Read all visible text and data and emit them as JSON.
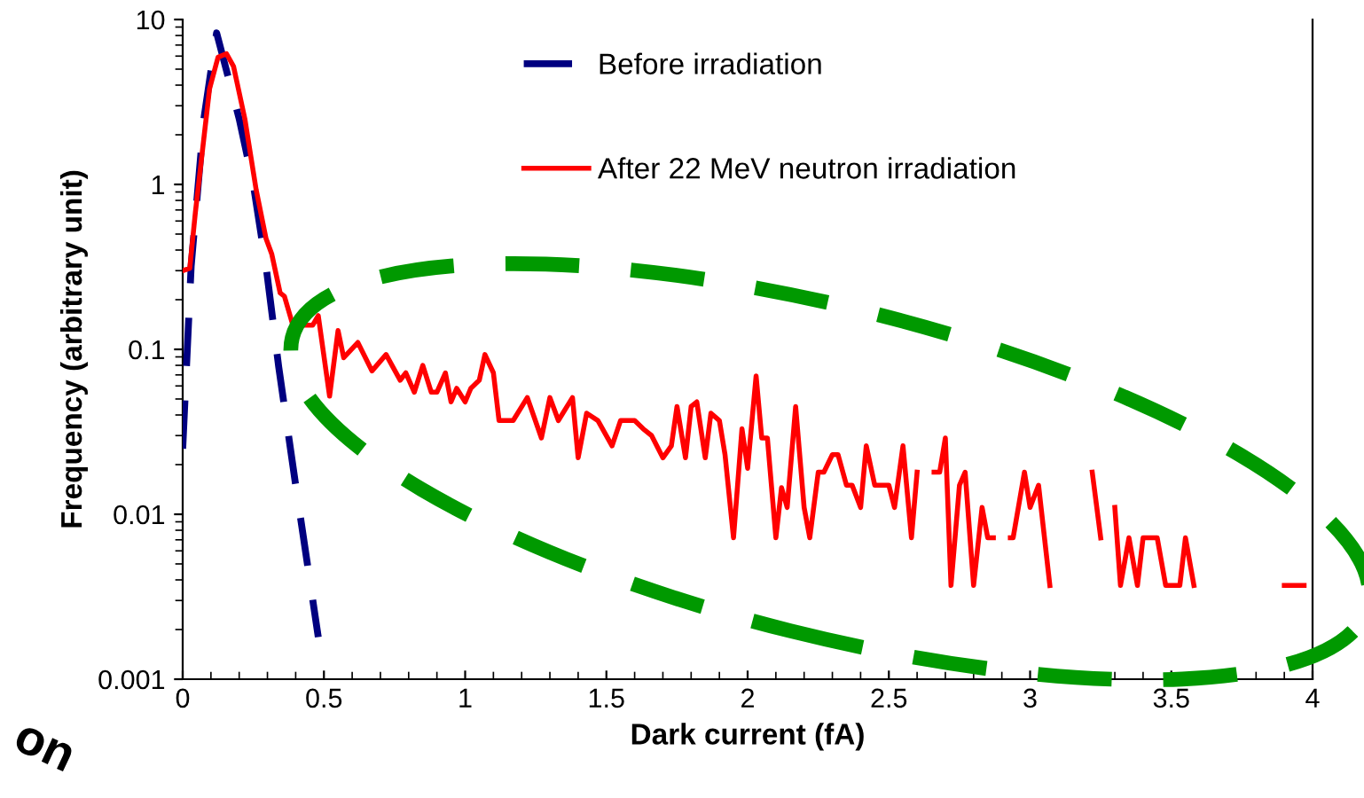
{
  "chart_data": {
    "type": "line",
    "xlabel": "Dark current (fA)",
    "ylabel": "Frequency (arbitrary unit)",
    "log": "y",
    "xlim": [
      0,
      4
    ],
    "xticks": [
      0,
      0.5,
      1,
      1.5,
      2,
      2.5,
      3,
      3.5,
      4
    ],
    "ylim": [
      0.001,
      10
    ],
    "yticks": [
      {
        "value": 0.001,
        "label": "0.001"
      },
      {
        "value": 0.01,
        "label": "0.01"
      },
      {
        "value": 0.1,
        "label": "0.1"
      },
      {
        "value": 1,
        "label": "1"
      },
      {
        "value": 10,
        "label": "10"
      }
    ],
    "grid": false,
    "legend": "top",
    "annotations": [
      "on"
    ],
    "series": [
      {
        "name": "Before irradiation",
        "color": "#000080",
        "line_style": "dashed",
        "x": [
          0,
          0.03,
          0.075,
          0.12,
          0.2,
          0.25,
          0.295,
          0.34,
          0.4,
          0.48
        ],
        "values": [
          0.025,
          0.32,
          2.5,
          8.3,
          2.5,
          1.0,
          0.32,
          0.078,
          0.015,
          0.0018
        ]
      },
      {
        "name": "After 22 MeV neutron irradiation",
        "color": "#ff0000",
        "line_style": "solid",
        "x": [
          0,
          0.025,
          0.045,
          0.095,
          0.125,
          0.155,
          0.18,
          0.22,
          0.26,
          0.295,
          0.315,
          0.345,
          0.36,
          0.39,
          0.46,
          0.48,
          0.52,
          0.55,
          0.57,
          0.62,
          0.67,
          0.72,
          0.77,
          0.79,
          0.82,
          0.85,
          0.88,
          0.9,
          0.93,
          0.95,
          0.97,
          1.0,
          1.02,
          1.05,
          1.07,
          1.1,
          1.12,
          1.17,
          1.22,
          1.27,
          1.3,
          1.33,
          1.38,
          1.4,
          1.43,
          1.47,
          1.52,
          1.55,
          1.6,
          1.63,
          1.66,
          1.7,
          1.73,
          1.75,
          1.78,
          1.8,
          1.82,
          1.85,
          1.87,
          1.9,
          1.92,
          1.95,
          1.98,
          2.0,
          2.03,
          2.05,
          2.07,
          2.1,
          2.12,
          2.14,
          2.17,
          2.2,
          2.22,
          2.25,
          2.27,
          2.3,
          2.32,
          2.35,
          2.37,
          2.4,
          2.42,
          2.45,
          2.5,
          2.52,
          2.55,
          2.58,
          2.6,
          2.63,
          2.66,
          2.68,
          2.7,
          2.72,
          2.75,
          2.77,
          2.8,
          2.83,
          2.85,
          2.87,
          2.9,
          2.93,
          2.94,
          2.98,
          3.0,
          3.03,
          3.07,
          3.15,
          3.22,
          3.25,
          3.28,
          3.3,
          3.32,
          3.35,
          3.38,
          3.4,
          3.45,
          3.48,
          3.53,
          3.55,
          3.58,
          3.75,
          3.9,
          3.97
        ],
        "values": [
          0.3,
          0.31,
          0.68,
          3.8,
          5.9,
          6.2,
          5.2,
          2.5,
          0.93,
          0.47,
          0.38,
          0.22,
          0.21,
          0.14,
          0.14,
          0.16,
          0.052,
          0.13,
          0.089,
          0.11,
          0.074,
          0.093,
          0.065,
          0.072,
          0.055,
          0.08,
          0.055,
          0.055,
          0.072,
          0.048,
          0.058,
          0.048,
          0.058,
          0.065,
          0.093,
          0.072,
          0.037,
          0.037,
          0.051,
          0.029,
          0.051,
          0.037,
          0.051,
          0.022,
          0.041,
          0.037,
          0.026,
          0.037,
          0.037,
          0.033,
          0.03,
          0.022,
          0.026,
          0.045,
          0.022,
          0.045,
          0.048,
          0.022,
          0.041,
          0.037,
          0.023,
          0.0072,
          0.033,
          0.019,
          0.069,
          0.029,
          0.029,
          0.0072,
          0.0145,
          0.011,
          0.045,
          0.011,
          0.0072,
          0.018,
          0.018,
          0.023,
          0.023,
          0.015,
          0.015,
          0.011,
          0.026,
          0.015,
          0.015,
          0.011,
          0.026,
          0.0072,
          0.018,
          null,
          0.018,
          0.018,
          0.029,
          0.0037,
          0.015,
          0.018,
          0.0037,
          0.011,
          0.0072,
          0.0072,
          null,
          0.0072,
          0.0072,
          0.018,
          0.011,
          0.015,
          0.0037,
          null,
          0.018,
          0.0072,
          null,
          0.011,
          0.0037,
          0.0072,
          0.0037,
          0.0072,
          0.0072,
          0.0037,
          0.0037,
          0.0072,
          0.0037,
          null,
          0.0037,
          0.0037
        ]
      }
    ]
  }
}
